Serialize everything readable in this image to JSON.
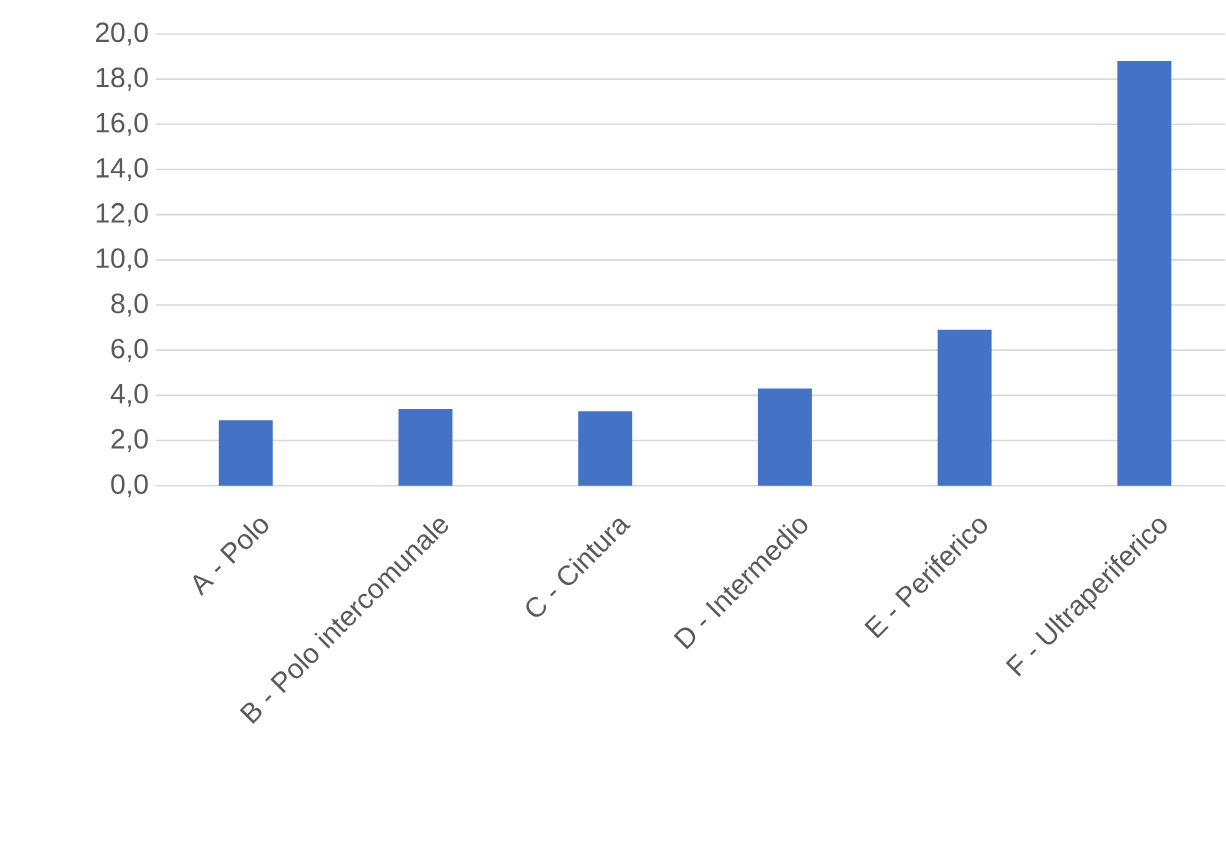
{
  "chart_data": {
    "type": "bar",
    "categories": [
      "A - Polo",
      "B - Polo intercomunale",
      "C - Cintura",
      "D - Intermedio",
      "E - Periferico",
      "F - Ultraperiferico"
    ],
    "values": [
      2.9,
      3.4,
      3.3,
      4.3,
      6.9,
      18.8
    ],
    "color": "#4472c4",
    "ylim": [
      0,
      20
    ],
    "yticks": [
      {
        "value": 0,
        "label": "0,0"
      },
      {
        "value": 2,
        "label": "2,0"
      },
      {
        "value": 4,
        "label": "4,0"
      },
      {
        "value": 6,
        "label": "6,0"
      },
      {
        "value": 8,
        "label": "8,0"
      },
      {
        "value": 10,
        "label": "10,0"
      },
      {
        "value": 12,
        "label": "12,0"
      },
      {
        "value": 14,
        "label": "14,0"
      },
      {
        "value": 16,
        "label": "16,0"
      },
      {
        "value": 18,
        "label": "18,0"
      },
      {
        "value": 20,
        "label": "20,0"
      }
    ],
    "grid": "y"
  }
}
